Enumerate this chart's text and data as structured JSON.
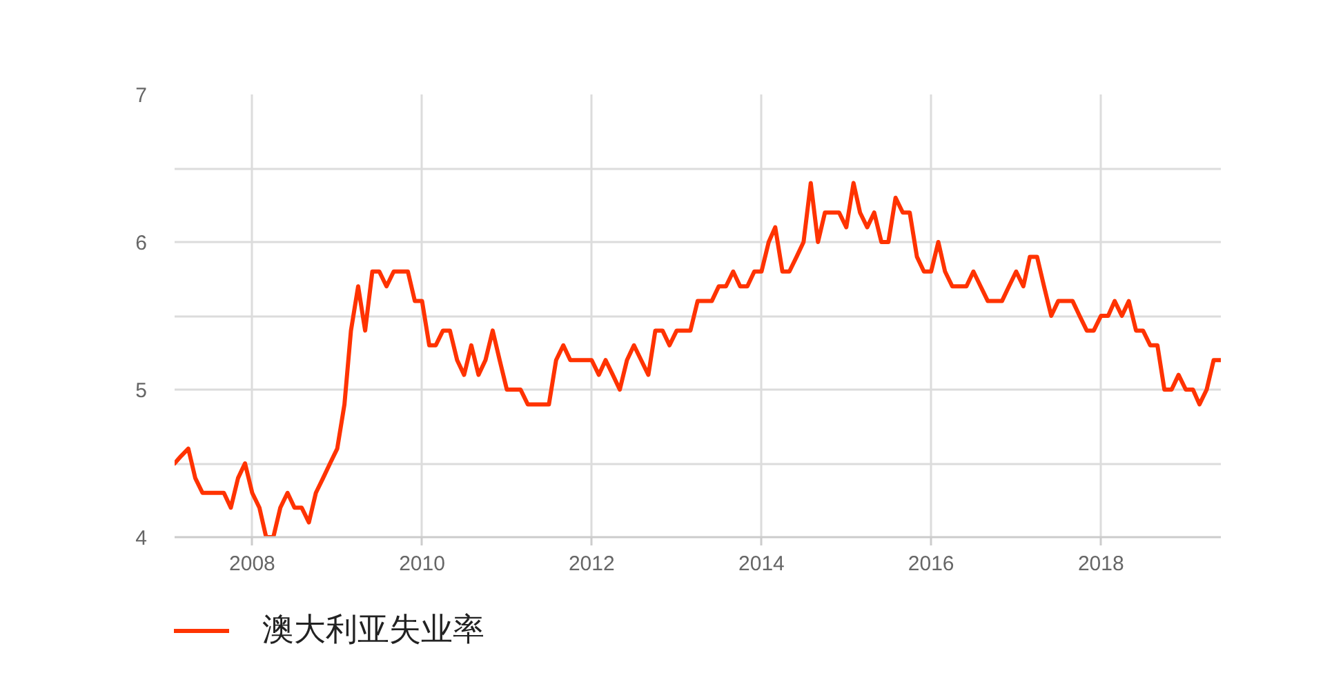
{
  "chart_data": {
    "type": "line",
    "x": [
      "2007-02",
      "2007-03",
      "2007-04",
      "2007-05",
      "2007-06",
      "2007-07",
      "2007-08",
      "2007-09",
      "2007-10",
      "2007-11",
      "2007-12",
      "2008-01",
      "2008-02",
      "2008-03",
      "2008-04",
      "2008-05",
      "2008-06",
      "2008-07",
      "2008-08",
      "2008-09",
      "2008-10",
      "2008-11",
      "2008-12",
      "2009-01",
      "2009-02",
      "2009-03",
      "2009-04",
      "2009-05",
      "2009-06",
      "2009-07",
      "2009-08",
      "2009-09",
      "2009-10",
      "2009-11",
      "2009-12",
      "2010-01",
      "2010-02",
      "2010-03",
      "2010-04",
      "2010-05",
      "2010-06",
      "2010-07",
      "2010-08",
      "2010-09",
      "2010-10",
      "2010-11",
      "2010-12",
      "2011-01",
      "2011-02",
      "2011-03",
      "2011-04",
      "2011-05",
      "2011-06",
      "2011-07",
      "2011-08",
      "2011-09",
      "2011-10",
      "2011-11",
      "2011-12",
      "2012-01",
      "2012-02",
      "2012-03",
      "2012-04",
      "2012-05",
      "2012-06",
      "2012-07",
      "2012-08",
      "2012-09",
      "2012-10",
      "2012-11",
      "2012-12",
      "2013-01",
      "2013-02",
      "2013-03",
      "2013-04",
      "2013-05",
      "2013-06",
      "2013-07",
      "2013-08",
      "2013-09",
      "2013-10",
      "2013-11",
      "2013-12",
      "2014-01",
      "2014-02",
      "2014-03",
      "2014-04",
      "2014-05",
      "2014-06",
      "2014-07",
      "2014-08",
      "2014-09",
      "2014-10",
      "2014-11",
      "2014-12",
      "2015-01",
      "2015-02",
      "2015-03",
      "2015-04",
      "2015-05",
      "2015-06",
      "2015-07",
      "2015-08",
      "2015-09",
      "2015-10",
      "2015-11",
      "2015-12",
      "2016-01",
      "2016-02",
      "2016-03",
      "2016-04",
      "2016-05",
      "2016-06",
      "2016-07",
      "2016-08",
      "2016-09",
      "2016-10",
      "2016-11",
      "2016-12",
      "2017-01",
      "2017-02",
      "2017-03",
      "2017-04",
      "2017-05",
      "2017-06",
      "2017-07",
      "2017-08",
      "2017-09",
      "2017-10",
      "2017-11",
      "2017-12",
      "2018-01",
      "2018-02",
      "2018-03",
      "2018-04",
      "2018-05",
      "2018-06",
      "2018-07",
      "2018-08",
      "2018-09",
      "2018-10",
      "2018-11",
      "2018-12",
      "2019-01",
      "2019-02",
      "2019-03",
      "2019-04",
      "2019-05",
      "2019-06"
    ],
    "series": [
      {
        "name": "澳大利亚失业率",
        "color": "#ff3300",
        "values": [
          4.5,
          4.55,
          4.6,
          4.4,
          4.3,
          4.3,
          4.3,
          4.3,
          4.2,
          4.4,
          4.5,
          4.3,
          4.2,
          4.0,
          4.0,
          4.2,
          4.3,
          4.2,
          4.2,
          4.1,
          4.3,
          4.4,
          4.5,
          4.6,
          4.9,
          5.4,
          5.7,
          5.4,
          5.8,
          5.8,
          5.7,
          5.8,
          5.8,
          5.8,
          5.6,
          5.6,
          5.3,
          5.3,
          5.4,
          5.4,
          5.2,
          5.1,
          5.3,
          5.1,
          5.2,
          5.4,
          5.2,
          5.0,
          5.0,
          5.0,
          4.9,
          4.9,
          4.9,
          4.9,
          5.2,
          5.3,
          5.2,
          5.2,
          5.2,
          5.2,
          5.1,
          5.2,
          5.1,
          5.0,
          5.2,
          5.3,
          5.2,
          5.1,
          5.4,
          5.4,
          5.3,
          5.4,
          5.4,
          5.4,
          5.6,
          5.6,
          5.6,
          5.7,
          5.7,
          5.8,
          5.7,
          5.7,
          5.8,
          5.8,
          6.0,
          6.1,
          5.8,
          5.8,
          5.9,
          6.0,
          6.4,
          6.0,
          6.2,
          6.2,
          6.2,
          6.1,
          6.4,
          6.2,
          6.1,
          6.2,
          6.0,
          6.0,
          6.3,
          6.2,
          6.2,
          5.9,
          5.8,
          5.8,
          6.0,
          5.8,
          5.7,
          5.7,
          5.7,
          5.8,
          5.7,
          5.6,
          5.6,
          5.6,
          5.7,
          5.8,
          5.7,
          5.9,
          5.9,
          5.7,
          5.5,
          5.6,
          5.6,
          5.6,
          5.5,
          5.4,
          5.4,
          5.5,
          5.5,
          5.6,
          5.5,
          5.6,
          5.4,
          5.4,
          5.3,
          5.3,
          5.0,
          5.0,
          5.1,
          5.0,
          5.0,
          4.9,
          5.0,
          5.2,
          5.2
        ]
      }
    ],
    "xlim": [
      "2007-02",
      "2019-06"
    ],
    "xticks": [
      "2008",
      "2010",
      "2012",
      "2014",
      "2016",
      "2018"
    ],
    "ylim": [
      4,
      7
    ],
    "yticks": [
      4,
      {
        "value": 4.5,
        "label": null
      },
      5,
      {
        "value": 5.5,
        "label": null
      },
      6,
      {
        "value": 6.5,
        "label": null
      },
      7
    ],
    "grid": true,
    "legend": "bottom"
  }
}
